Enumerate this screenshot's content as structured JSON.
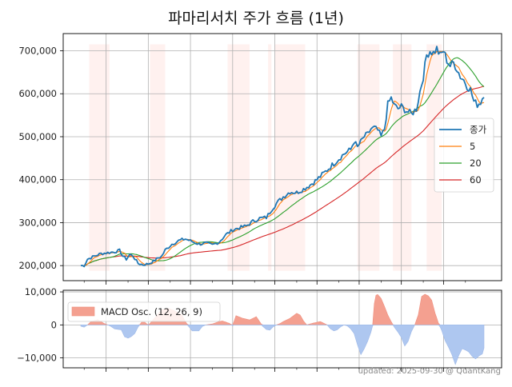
{
  "title": "파마리서치 주가 흐름 (1년)",
  "footer": "updated: 2025-09-30 @ QuantKang",
  "chart_data": [
    {
      "type": "line",
      "title": "파마리서치 주가 흐름 (1년)",
      "ylim": [
        165000,
        740000
      ],
      "yticks": [
        200000,
        300000,
        400000,
        500000,
        600000,
        700000
      ],
      "ytick_labels": [
        "200,000",
        "300,000",
        "400,000",
        "500,000",
        "600,000",
        "700,000"
      ],
      "grid": true,
      "legend_position": "right",
      "x_count": 240,
      "shaded_ranges": [
        [
          5,
          17
        ],
        [
          41,
          50
        ],
        [
          87,
          100
        ],
        [
          111,
          113
        ],
        [
          115,
          133
        ],
        [
          164,
          177
        ],
        [
          185,
          196
        ],
        [
          205,
          214
        ]
      ],
      "price_anchors": [
        [
          0,
          200000
        ],
        [
          2,
          200000
        ],
        [
          4,
          215000
        ],
        [
          8,
          222000
        ],
        [
          12,
          228000
        ],
        [
          16,
          230000
        ],
        [
          20,
          232000
        ],
        [
          23,
          235000
        ],
        [
          25,
          222000
        ],
        [
          27,
          215000
        ],
        [
          29,
          226000
        ],
        [
          31,
          222000
        ],
        [
          34,
          205000
        ],
        [
          37,
          202000
        ],
        [
          40,
          204000
        ],
        [
          43,
          210000
        ],
        [
          46,
          218000
        ],
        [
          48,
          222000
        ],
        [
          50,
          236000
        ],
        [
          54,
          250000
        ],
        [
          58,
          258000
        ],
        [
          62,
          262000
        ],
        [
          66,
          256000
        ],
        [
          70,
          250000
        ],
        [
          74,
          252000
        ],
        [
          78,
          248000
        ],
        [
          82,
          255000
        ],
        [
          86,
          272000
        ],
        [
          90,
          283000
        ],
        [
          94,
          288000
        ],
        [
          98,
          292000
        ],
        [
          102,
          303000
        ],
        [
          106,
          310000
        ],
        [
          110,
          312000
        ],
        [
          113,
          330000
        ],
        [
          116,
          345000
        ],
        [
          120,
          360000
        ],
        [
          124,
          372000
        ],
        [
          128,
          370000
        ],
        [
          132,
          378000
        ],
        [
          136,
          388000
        ],
        [
          140,
          400000
        ],
        [
          144,
          415000
        ],
        [
          148,
          430000
        ],
        [
          152,
          445000
        ],
        [
          156,
          460000
        ],
        [
          160,
          470000
        ],
        [
          162,
          490000
        ],
        [
          164,
          475000
        ],
        [
          166,
          488000
        ],
        [
          168,
          500000
        ],
        [
          170,
          505000
        ],
        [
          172,
          518000
        ],
        [
          174,
          520000
        ],
        [
          176,
          515000
        ],
        [
          178,
          500000
        ],
        [
          180,
          518000
        ],
        [
          182,
          575000
        ],
        [
          184,
          590000
        ],
        [
          186,
          572000
        ],
        [
          188,
          565000
        ],
        [
          190,
          570000
        ],
        [
          193,
          560000
        ],
        [
          196,
          553000
        ],
        [
          199,
          565000
        ],
        [
          201,
          605000
        ],
        [
          203,
          640000
        ],
        [
          205,
          690000
        ],
        [
          207,
          700000
        ],
        [
          209,
          695000
        ],
        [
          211,
          705000
        ],
        [
          213,
          688000
        ],
        [
          215,
          700000
        ],
        [
          217,
          678000
        ],
        [
          219,
          665000
        ],
        [
          221,
          672000
        ],
        [
          223,
          658000
        ],
        [
          225,
          640000
        ],
        [
          227,
          632000
        ],
        [
          229,
          618000
        ],
        [
          231,
          610000
        ],
        [
          233,
          582000
        ],
        [
          235,
          575000
        ],
        [
          237,
          580000
        ],
        [
          239,
          600000
        ]
      ],
      "series": [
        {
          "name": "종가",
          "color": "#1f77b4"
        },
        {
          "name": "5",
          "color": "#ff7f0e",
          "window": 5
        },
        {
          "name": "20",
          "color": "#2ca02c",
          "window": 20
        },
        {
          "name": "60",
          "color": "#d62728",
          "window": 60
        }
      ]
    },
    {
      "type": "area",
      "series_name": "MACD Osc. (12, 26, 9)",
      "ylim": [
        -13000,
        10500
      ],
      "yticks": [
        -10000,
        0,
        10000
      ],
      "ytick_labels": [
        "−10,000",
        "0",
        "10,000"
      ],
      "positive_color": "#f4a090",
      "negative_color": "#aec7f0",
      "anchors": [
        [
          0,
          -400
        ],
        [
          2,
          -700
        ],
        [
          4,
          0
        ],
        [
          6,
          1000
        ],
        [
          10,
          1600
        ],
        [
          14,
          400
        ],
        [
          17,
          -200
        ],
        [
          20,
          -1200
        ],
        [
          24,
          -1500
        ],
        [
          26,
          -3600
        ],
        [
          28,
          -4000
        ],
        [
          30,
          -3500
        ],
        [
          32,
          -2600
        ],
        [
          34,
          -600
        ],
        [
          36,
          800
        ],
        [
          38,
          800
        ],
        [
          40,
          -100
        ],
        [
          44,
          2200
        ],
        [
          48,
          4600
        ],
        [
          52,
          5000
        ],
        [
          56,
          4200
        ],
        [
          60,
          3000
        ],
        [
          62,
          1000
        ],
        [
          64,
          -500
        ],
        [
          66,
          -1800
        ],
        [
          70,
          -1800
        ],
        [
          72,
          -500
        ],
        [
          74,
          0
        ],
        [
          78,
          300
        ],
        [
          82,
          1000
        ],
        [
          84,
          1200
        ],
        [
          88,
          500
        ],
        [
          90,
          -200
        ],
        [
          92,
          2800
        ],
        [
          96,
          2000
        ],
        [
          100,
          1500
        ],
        [
          104,
          2500
        ],
        [
          106,
          1000
        ],
        [
          108,
          -500
        ],
        [
          110,
          -1400
        ],
        [
          112,
          -1600
        ],
        [
          114,
          -600
        ],
        [
          116,
          0
        ],
        [
          118,
          400
        ],
        [
          120,
          1000
        ],
        [
          124,
          2000
        ],
        [
          128,
          3500
        ],
        [
          130,
          3000
        ],
        [
          132,
          1200
        ],
        [
          134,
          0
        ],
        [
          138,
          600
        ],
        [
          142,
          1000
        ],
        [
          144,
          500
        ],
        [
          146,
          0
        ],
        [
          148,
          -1200
        ],
        [
          150,
          -1800
        ],
        [
          152,
          -1500
        ],
        [
          154,
          -600
        ],
        [
          156,
          0
        ],
        [
          158,
          -300
        ],
        [
          160,
          -1200
        ],
        [
          162,
          -2600
        ],
        [
          164,
          -6000
        ],
        [
          166,
          -9000
        ],
        [
          168,
          -7200
        ],
        [
          170,
          -5000
        ],
        [
          172,
          -2200
        ],
        [
          173,
          -200
        ],
        [
          174,
          6500
        ],
        [
          175,
          9000
        ],
        [
          176,
          9200
        ],
        [
          178,
          8000
        ],
        [
          180,
          5600
        ],
        [
          182,
          3000
        ],
        [
          184,
          1000
        ],
        [
          186,
          -800
        ],
        [
          188,
          -2200
        ],
        [
          190,
          -3800
        ],
        [
          192,
          -6400
        ],
        [
          194,
          -5000
        ],
        [
          196,
          -2000
        ],
        [
          198,
          0
        ],
        [
          200,
          3000
        ],
        [
          202,
          8600
        ],
        [
          204,
          9300
        ],
        [
          206,
          8800
        ],
        [
          208,
          7500
        ],
        [
          210,
          3600
        ],
        [
          212,
          500
        ],
        [
          214,
          -1800
        ],
        [
          216,
          -4800
        ],
        [
          218,
          -6800
        ],
        [
          220,
          -9000
        ],
        [
          222,
          -12000
        ],
        [
          224,
          -9300
        ],
        [
          226,
          -7200
        ],
        [
          228,
          -7600
        ],
        [
          230,
          -8200
        ],
        [
          232,
          -9500
        ],
        [
          234,
          -10300
        ],
        [
          236,
          -9400
        ],
        [
          238,
          -8800
        ],
        [
          239,
          -7000
        ]
      ]
    }
  ],
  "legend_top": [
    "종가",
    "5",
    "20",
    "60"
  ],
  "legend_bottom": "MACD Osc. (12, 26, 9)"
}
